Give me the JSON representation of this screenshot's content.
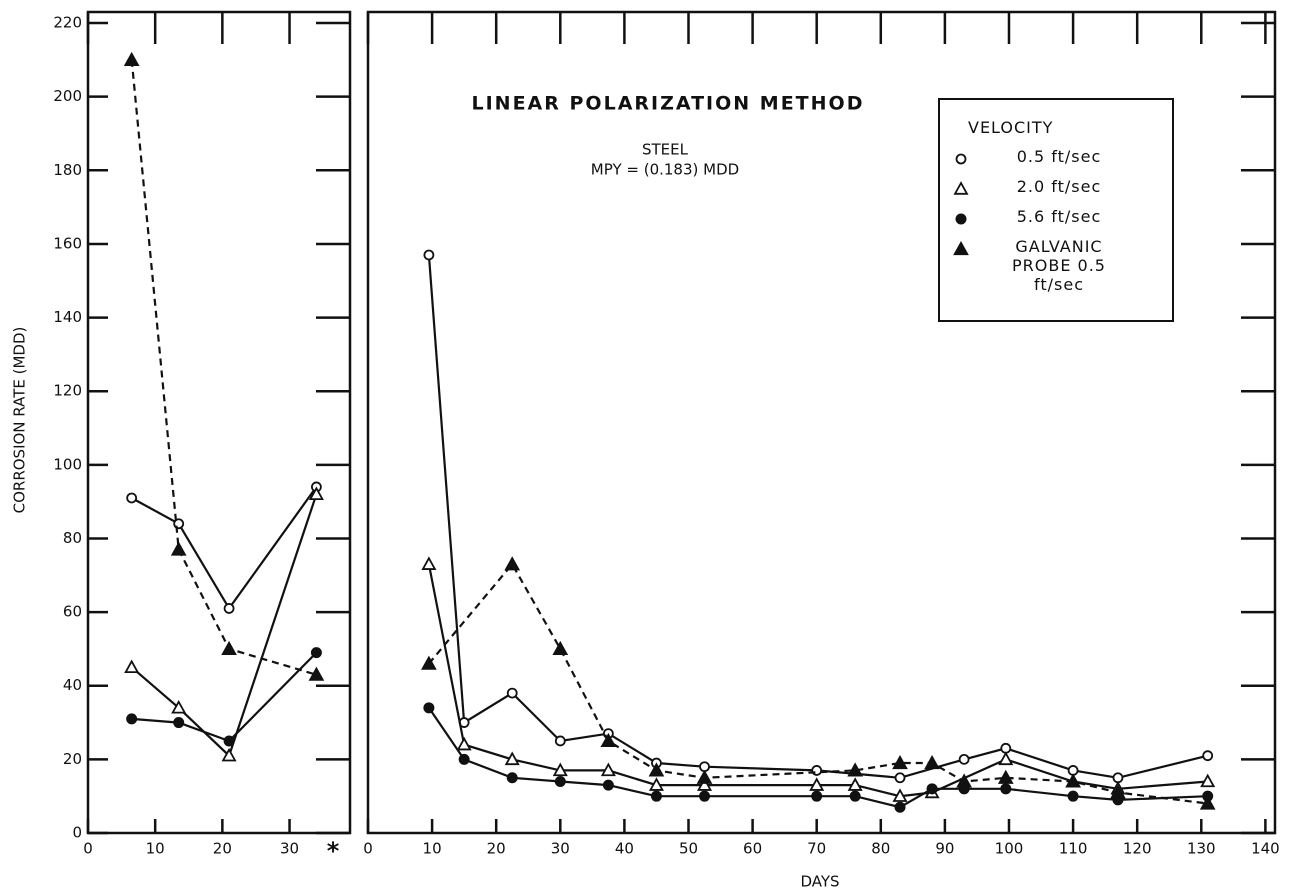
{
  "chart_data": [
    {
      "type": "line",
      "ylabel": "CORROSION RATE (MDD)",
      "xlim": [
        0,
        39
      ],
      "xticks": [
        0,
        10,
        20,
        30
      ],
      "ylim": [
        0,
        223
      ],
      "yticks": [
        0,
        20,
        40,
        60,
        80,
        100,
        120,
        140,
        160,
        180,
        200,
        220
      ],
      "series": [
        {
          "marker": "circle-open",
          "dash": false,
          "color": "#111111",
          "x": [
            6.5,
            13.5,
            21,
            34
          ],
          "values": [
            91,
            84,
            61,
            94
          ]
        },
        {
          "marker": "triangle-open",
          "dash": false,
          "color": "#111111",
          "x": [
            6.5,
            13.5,
            21,
            34
          ],
          "values": [
            45,
            34,
            21,
            92
          ]
        },
        {
          "marker": "circle",
          "dash": false,
          "color": "#111111",
          "x": [
            6.5,
            13.5,
            21,
            34
          ],
          "values": [
            31,
            30,
            25,
            49
          ]
        },
        {
          "marker": "triangle",
          "dash": true,
          "color": "#111111",
          "x": [
            6.5,
            13.5,
            21,
            34
          ],
          "values": [
            210,
            77,
            50,
            43
          ]
        }
      ]
    },
    {
      "type": "line",
      "title": "LINEAR POLARIZATION METHOD",
      "subtitle": [
        "STEEL",
        "MPY = (0.183) MDD"
      ],
      "xlabel": "DAYS",
      "x_axis_note": "*",
      "legend_title": "VELOCITY",
      "legend": "upper right",
      "xlim": [
        0,
        141.5
      ],
      "xticks": [
        0,
        10,
        20,
        30,
        40,
        50,
        60,
        70,
        80,
        90,
        100,
        110,
        120,
        130,
        140
      ],
      "ylim": [
        0,
        223
      ],
      "yticks": [
        0,
        20,
        40,
        60,
        80,
        100,
        120,
        140,
        160,
        180,
        200,
        220
      ],
      "series": [
        {
          "name": "0.5 ft/sec",
          "marker": "circle-open",
          "dash": false,
          "color": "#111111",
          "x": [
            9.5,
            15,
            22.5,
            30,
            37.5,
            45,
            52.5,
            70,
            83,
            93,
            99.5,
            110,
            117,
            131
          ],
          "values": [
            157,
            30,
            38,
            25,
            27,
            19,
            18,
            17,
            15,
            20,
            23,
            17,
            15,
            21
          ]
        },
        {
          "name": "2.0 ft/sec",
          "marker": "triangle-open",
          "dash": false,
          "color": "#111111",
          "x": [
            9.5,
            15,
            22.5,
            30,
            37.5,
            45,
            52.5,
            70,
            76,
            83,
            88,
            99.5,
            110,
            117,
            131
          ],
          "values": [
            73,
            24,
            20,
            17,
            17,
            13,
            13,
            13,
            13,
            10,
            11,
            20,
            14,
            12,
            14
          ]
        },
        {
          "name": "5.6 ft/sec",
          "marker": "circle",
          "dash": false,
          "color": "#111111",
          "x": [
            9.5,
            15,
            22.5,
            30,
            37.5,
            45,
            52.5,
            70,
            76,
            83,
            88,
            93,
            99.5,
            110,
            117,
            131
          ],
          "values": [
            34,
            20,
            15,
            14,
            13,
            10,
            10,
            10,
            10,
            7,
            12,
            12,
            12,
            10,
            9,
            10
          ]
        },
        {
          "name": "GALVANIC PROBE 0.5 ft/sec",
          "marker": "triangle",
          "dash": true,
          "color": "#111111",
          "x": [
            9.5,
            22.5,
            30,
            37.5,
            45,
            52.5,
            76,
            83,
            88,
            93,
            99.5,
            110,
            117,
            131
          ],
          "values": [
            46,
            73,
            50,
            25,
            17,
            15,
            17,
            19,
            19,
            14,
            15,
            14,
            11,
            8
          ]
        }
      ]
    }
  ]
}
